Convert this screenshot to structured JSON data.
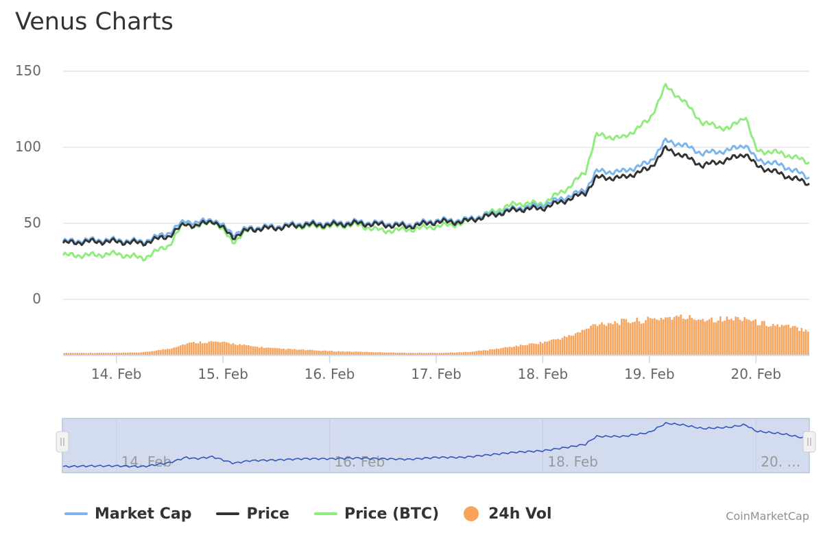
{
  "title": "Venus Charts",
  "credit": "CoinMarketCap",
  "colors": {
    "market_cap": "#7cb5ec",
    "price": "#333333",
    "price_btc": "#90ed7d",
    "volume": "#f7a35c",
    "navigator_line": "#3355bb",
    "navigator_fill": "#d3dbee",
    "grid": "#d8d8d8"
  },
  "legend": [
    {
      "label": "Market Cap",
      "color": "#7cb5ec",
      "symbol": "line"
    },
    {
      "label": "Price",
      "color": "#333333",
      "symbol": "line"
    },
    {
      "label": "Price (BTC)",
      "color": "#90ed7d",
      "symbol": "line"
    },
    {
      "label": "24h Vol",
      "color": "#f7a35c",
      "symbol": "circle"
    }
  ],
  "navigator": {
    "x_labels": [
      "14. Feb",
      "16. Feb",
      "18. Feb",
      "20. …"
    ]
  },
  "chart_data": {
    "type": "line",
    "title": "Venus Charts",
    "xlabel": "",
    "ylabel": "",
    "x_range": [
      "13. Feb 12:00",
      "20. Feb 12:00"
    ],
    "ylim": [
      0,
      150
    ],
    "y_ticks": [
      0,
      50,
      100,
      150
    ],
    "x_tick_labels": [
      "14. Feb",
      "15. Feb",
      "16. Feb",
      "17. Feb",
      "18. Feb",
      "19. Feb",
      "20. Feb"
    ],
    "grid": true,
    "legend_position": "bottom",
    "x": [
      13.5,
      13.75,
      14.0,
      14.25,
      14.5,
      14.65,
      14.75,
      14.9,
      15.1,
      15.25,
      15.5,
      15.75,
      16.0,
      16.25,
      16.5,
      16.75,
      17.0,
      17.25,
      17.5,
      17.75,
      18.0,
      18.25,
      18.4,
      18.5,
      18.75,
      19.0,
      19.15,
      19.3,
      19.5,
      19.75,
      19.9,
      20.0,
      20.25,
      20.5
    ],
    "series": [
      {
        "name": "Market Cap",
        "values": [
          38,
          39,
          39,
          38,
          44,
          52,
          50,
          53,
          43,
          47,
          48,
          50,
          50,
          51,
          50,
          49,
          52,
          52,
          56,
          60,
          62,
          68,
          72,
          84,
          84,
          90,
          104,
          102,
          96,
          98,
          102,
          92,
          88,
          80
        ]
      },
      {
        "name": "Price",
        "values": [
          37,
          38,
          38,
          37,
          42,
          50,
          48,
          52,
          41,
          46,
          47,
          49,
          49,
          50,
          49,
          48,
          51,
          51,
          55,
          59,
          60,
          66,
          70,
          80,
          80,
          86,
          99,
          95,
          88,
          92,
          96,
          88,
          82,
          76
        ]
      },
      {
        "name": "Price (BTC)",
        "values": [
          29,
          29,
          30,
          27,
          36,
          52,
          47,
          52,
          38,
          46,
          48,
          48,
          48,
          49,
          45,
          46,
          48,
          50,
          57,
          63,
          63,
          74,
          84,
          108,
          106,
          118,
          140,
          132,
          116,
          112,
          121,
          98,
          96,
          90
        ]
      },
      {
        "name": "24h Vol",
        "values": [
          3,
          3,
          3,
          4,
          10,
          18,
          20,
          21,
          18,
          14,
          10,
          8,
          6,
          5,
          4,
          3,
          3,
          4,
          8,
          14,
          20,
          30,
          40,
          50,
          53,
          56,
          60,
          60,
          58,
          57,
          60,
          52,
          46,
          40
        ]
      }
    ]
  }
}
